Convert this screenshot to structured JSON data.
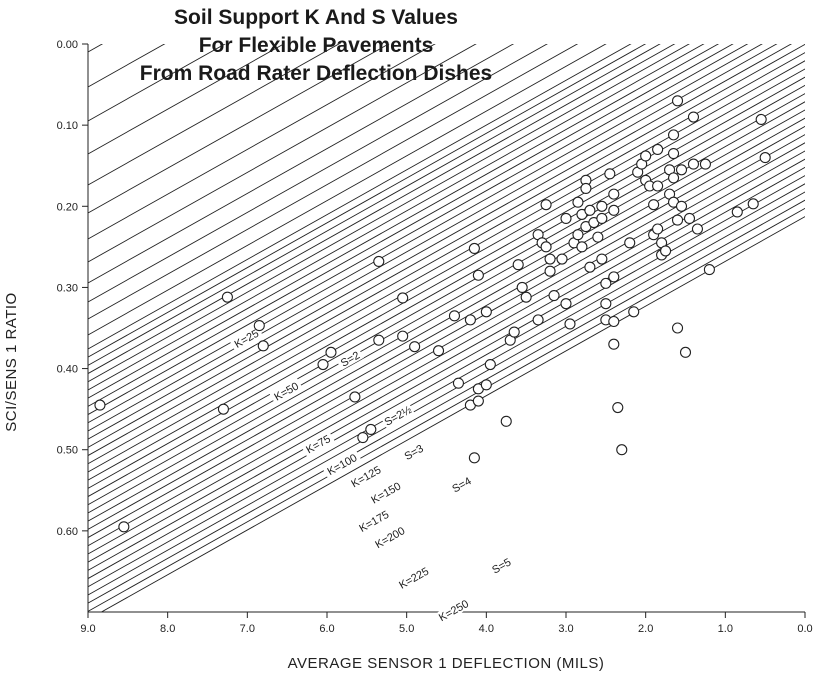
{
  "chart_data": {
    "type": "scatter",
    "title": [
      "Soil Support K And S Values",
      "For Flexible Pavements",
      "From Road Rater Deflection Dishes"
    ],
    "xlabel": "AVERAGE SENSOR 1 DEFLECTION (MILS)",
    "ylabel": "SCI/SENS 1 RATIO",
    "xlim": [
      9.0,
      0.0
    ],
    "ylim": [
      0.0,
      0.7
    ],
    "x_ticks": [
      "9.0",
      "8.0",
      "7.0",
      "6.0",
      "5.0",
      "4.0",
      "3.0",
      "2.0",
      "1.0",
      "0.0"
    ],
    "y_ticks": [
      "0.00",
      "0.10",
      "0.20",
      "0.30",
      "0.40",
      "0.50",
      "0.60"
    ],
    "curve_labels": [
      {
        "text": "K=25",
        "x": 7.0,
        "y": 0.365
      },
      {
        "text": "S=2",
        "x": 5.7,
        "y": 0.39
      },
      {
        "text": "K=50",
        "x": 6.5,
        "y": 0.43
      },
      {
        "text": "S=2½",
        "x": 5.1,
        "y": 0.46
      },
      {
        "text": "K=75",
        "x": 6.1,
        "y": 0.495
      },
      {
        "text": "S=3",
        "x": 4.9,
        "y": 0.505
      },
      {
        "text": "K=100",
        "x": 5.8,
        "y": 0.52
      },
      {
        "text": "K=125",
        "x": 5.5,
        "y": 0.535
      },
      {
        "text": "K=150",
        "x": 5.25,
        "y": 0.555
      },
      {
        "text": "S=4",
        "x": 4.3,
        "y": 0.545
      },
      {
        "text": "K=175",
        "x": 5.4,
        "y": 0.59
      },
      {
        "text": "K=200",
        "x": 5.2,
        "y": 0.61
      },
      {
        "text": "K=225",
        "x": 4.9,
        "y": 0.66
      },
      {
        "text": "S=5",
        "x": 3.8,
        "y": 0.645
      },
      {
        "text": "K=250",
        "x": 4.4,
        "y": 0.7
      }
    ],
    "series": [
      {
        "points": [
          [
            8.85,
            0.445
          ],
          [
            8.55,
            0.595
          ],
          [
            7.25,
            0.312
          ],
          [
            7.3,
            0.45
          ],
          [
            6.85,
            0.347
          ],
          [
            6.8,
            0.372
          ],
          [
            6.05,
            0.395
          ],
          [
            5.95,
            0.38
          ],
          [
            5.65,
            0.435
          ],
          [
            5.55,
            0.485
          ],
          [
            5.45,
            0.475
          ],
          [
            5.35,
            0.268
          ],
          [
            5.35,
            0.365
          ],
          [
            5.05,
            0.313
          ],
          [
            5.05,
            0.36
          ],
          [
            4.9,
            0.373
          ],
          [
            4.6,
            0.378
          ],
          [
            4.4,
            0.335
          ],
          [
            4.35,
            0.418
          ],
          [
            4.2,
            0.34
          ],
          [
            4.2,
            0.445
          ],
          [
            4.15,
            0.51
          ],
          [
            4.15,
            0.252
          ],
          [
            4.1,
            0.285
          ],
          [
            4.1,
            0.425
          ],
          [
            4.1,
            0.44
          ],
          [
            4.0,
            0.33
          ],
          [
            4.0,
            0.42
          ],
          [
            3.95,
            0.395
          ],
          [
            3.75,
            0.465
          ],
          [
            3.7,
            0.365
          ],
          [
            3.65,
            0.355
          ],
          [
            3.6,
            0.272
          ],
          [
            3.55,
            0.3
          ],
          [
            3.5,
            0.312
          ],
          [
            3.35,
            0.235
          ],
          [
            3.35,
            0.34
          ],
          [
            3.3,
            0.245
          ],
          [
            3.25,
            0.198
          ],
          [
            3.25,
            0.25
          ],
          [
            3.2,
            0.265
          ],
          [
            3.2,
            0.28
          ],
          [
            3.15,
            0.31
          ],
          [
            3.05,
            0.265
          ],
          [
            3.0,
            0.215
          ],
          [
            3.0,
            0.32
          ],
          [
            2.95,
            0.345
          ],
          [
            2.9,
            0.245
          ],
          [
            2.85,
            0.195
          ],
          [
            2.85,
            0.235
          ],
          [
            2.8,
            0.21
          ],
          [
            2.8,
            0.25
          ],
          [
            2.75,
            0.168
          ],
          [
            2.75,
            0.178
          ],
          [
            2.75,
            0.225
          ],
          [
            2.7,
            0.205
          ],
          [
            2.7,
            0.275
          ],
          [
            2.65,
            0.22
          ],
          [
            2.6,
            0.238
          ],
          [
            2.55,
            0.2
          ],
          [
            2.55,
            0.215
          ],
          [
            2.55,
            0.265
          ],
          [
            2.5,
            0.32
          ],
          [
            2.5,
            0.34
          ],
          [
            2.5,
            0.295
          ],
          [
            2.45,
            0.16
          ],
          [
            2.4,
            0.185
          ],
          [
            2.4,
            0.205
          ],
          [
            2.4,
            0.287
          ],
          [
            2.4,
            0.342
          ],
          [
            2.4,
            0.37
          ],
          [
            2.35,
            0.448
          ],
          [
            2.3,
            0.5
          ],
          [
            2.2,
            0.245
          ],
          [
            2.15,
            0.33
          ],
          [
            2.1,
            0.158
          ],
          [
            2.05,
            0.148
          ],
          [
            2.0,
            0.168
          ],
          [
            2.0,
            0.138
          ],
          [
            1.95,
            0.175
          ],
          [
            1.9,
            0.198
          ],
          [
            1.9,
            0.235
          ],
          [
            1.85,
            0.13
          ],
          [
            1.85,
            0.175
          ],
          [
            1.85,
            0.228
          ],
          [
            1.8,
            0.245
          ],
          [
            1.8,
            0.26
          ],
          [
            1.75,
            0.255
          ],
          [
            1.7,
            0.155
          ],
          [
            1.7,
            0.185
          ],
          [
            1.65,
            0.112
          ],
          [
            1.65,
            0.135
          ],
          [
            1.65,
            0.165
          ],
          [
            1.65,
            0.195
          ],
          [
            1.6,
            0.217
          ],
          [
            1.6,
            0.07
          ],
          [
            1.6,
            0.35
          ],
          [
            1.55,
            0.155
          ],
          [
            1.55,
            0.2
          ],
          [
            1.5,
            0.38
          ],
          [
            1.45,
            0.215
          ],
          [
            1.4,
            0.09
          ],
          [
            1.4,
            0.148
          ],
          [
            1.35,
            0.228
          ],
          [
            1.25,
            0.148
          ],
          [
            1.2,
            0.278
          ],
          [
            0.85,
            0.207
          ],
          [
            0.65,
            0.197
          ],
          [
            0.55,
            0.093
          ],
          [
            0.5,
            0.14
          ]
        ]
      }
    ],
    "grid": false
  }
}
